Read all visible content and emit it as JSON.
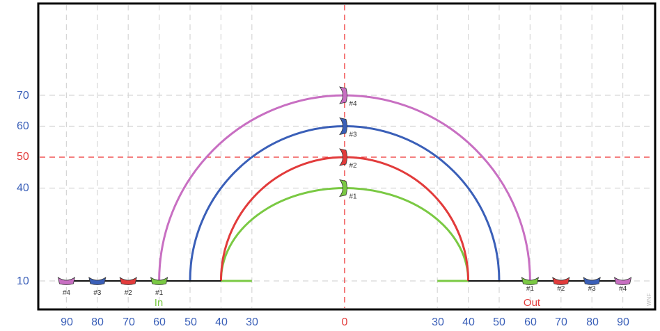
{
  "colors": {
    "background": "#ffffff",
    "frame": "#000000",
    "grid": "#d6d6d6",
    "center": "#ee3333",
    "tick_blue": "#3a5fb8",
    "tick_red": "#e23b3b",
    "baseline": "#111111"
  },
  "y_ticks": [
    "70",
    "60",
    "50",
    "40",
    "10"
  ],
  "x_ticks_left": [
    "90",
    "80",
    "70",
    "60",
    "50",
    "40",
    "30"
  ],
  "x_tick_center": "0",
  "x_ticks_right": [
    "30",
    "40",
    "50",
    "60",
    "70",
    "80",
    "90"
  ],
  "labels": {
    "in": "In",
    "out": "Out",
    "watermark": "WNF"
  },
  "slurs": [
    {
      "id": "#1",
      "start": 60,
      "end": 60,
      "inner": 30,
      "outer": 40,
      "peak": 40,
      "color": "#7ac943"
    },
    {
      "id": "#2",
      "start": 70,
      "end": 70,
      "inner": 40,
      "outer": 40,
      "peak": 50,
      "color": "#e23b3b"
    },
    {
      "id": "#3",
      "start": 80,
      "end": 80,
      "inner": 50,
      "outer": 50,
      "peak": 60,
      "color": "#3a5fb8"
    },
    {
      "id": "#4",
      "start": 90,
      "end": 90,
      "inner": 60,
      "outer": 60,
      "peak": 70,
      "color": "#c86fc2"
    }
  ]
}
